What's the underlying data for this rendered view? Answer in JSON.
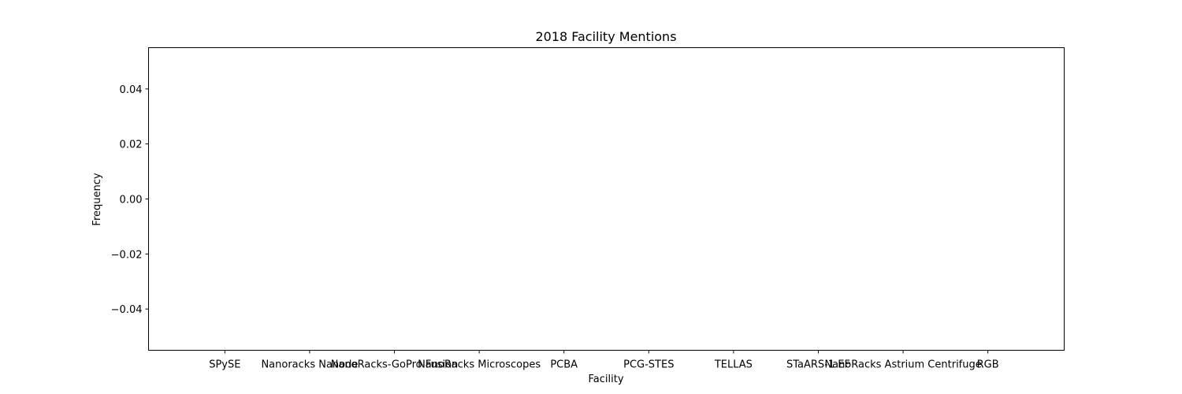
{
  "chart_data": {
    "type": "bar",
    "title": "2018 Facility Mentions",
    "xlabel": "Facility",
    "ylabel": "Frequency",
    "categories": [
      "SPySE",
      "Nanoracks Nanode",
      "NanoRacks-GoPro Fusion",
      "NanoRacks Microscopes",
      "PCBA",
      "PCG-STES",
      "TELLAS",
      "STaARS-1 EF",
      "NanoRacks Astrium Centrifuge",
      "RGB"
    ],
    "values": [
      0,
      0,
      0,
      0,
      0,
      0,
      0,
      0,
      0,
      0
    ],
    "ylim": [
      -0.055,
      0.055
    ],
    "yticks": [
      0.04,
      0.02,
      0.0,
      -0.02,
      -0.04
    ],
    "ytick_labels": [
      "0.04",
      "0.02",
      "0.00",
      "−0.02",
      "−0.04"
    ],
    "grid": false,
    "colors": {
      "bar": "#1f77b4",
      "axis": "#000000",
      "background": "#ffffff"
    }
  }
}
